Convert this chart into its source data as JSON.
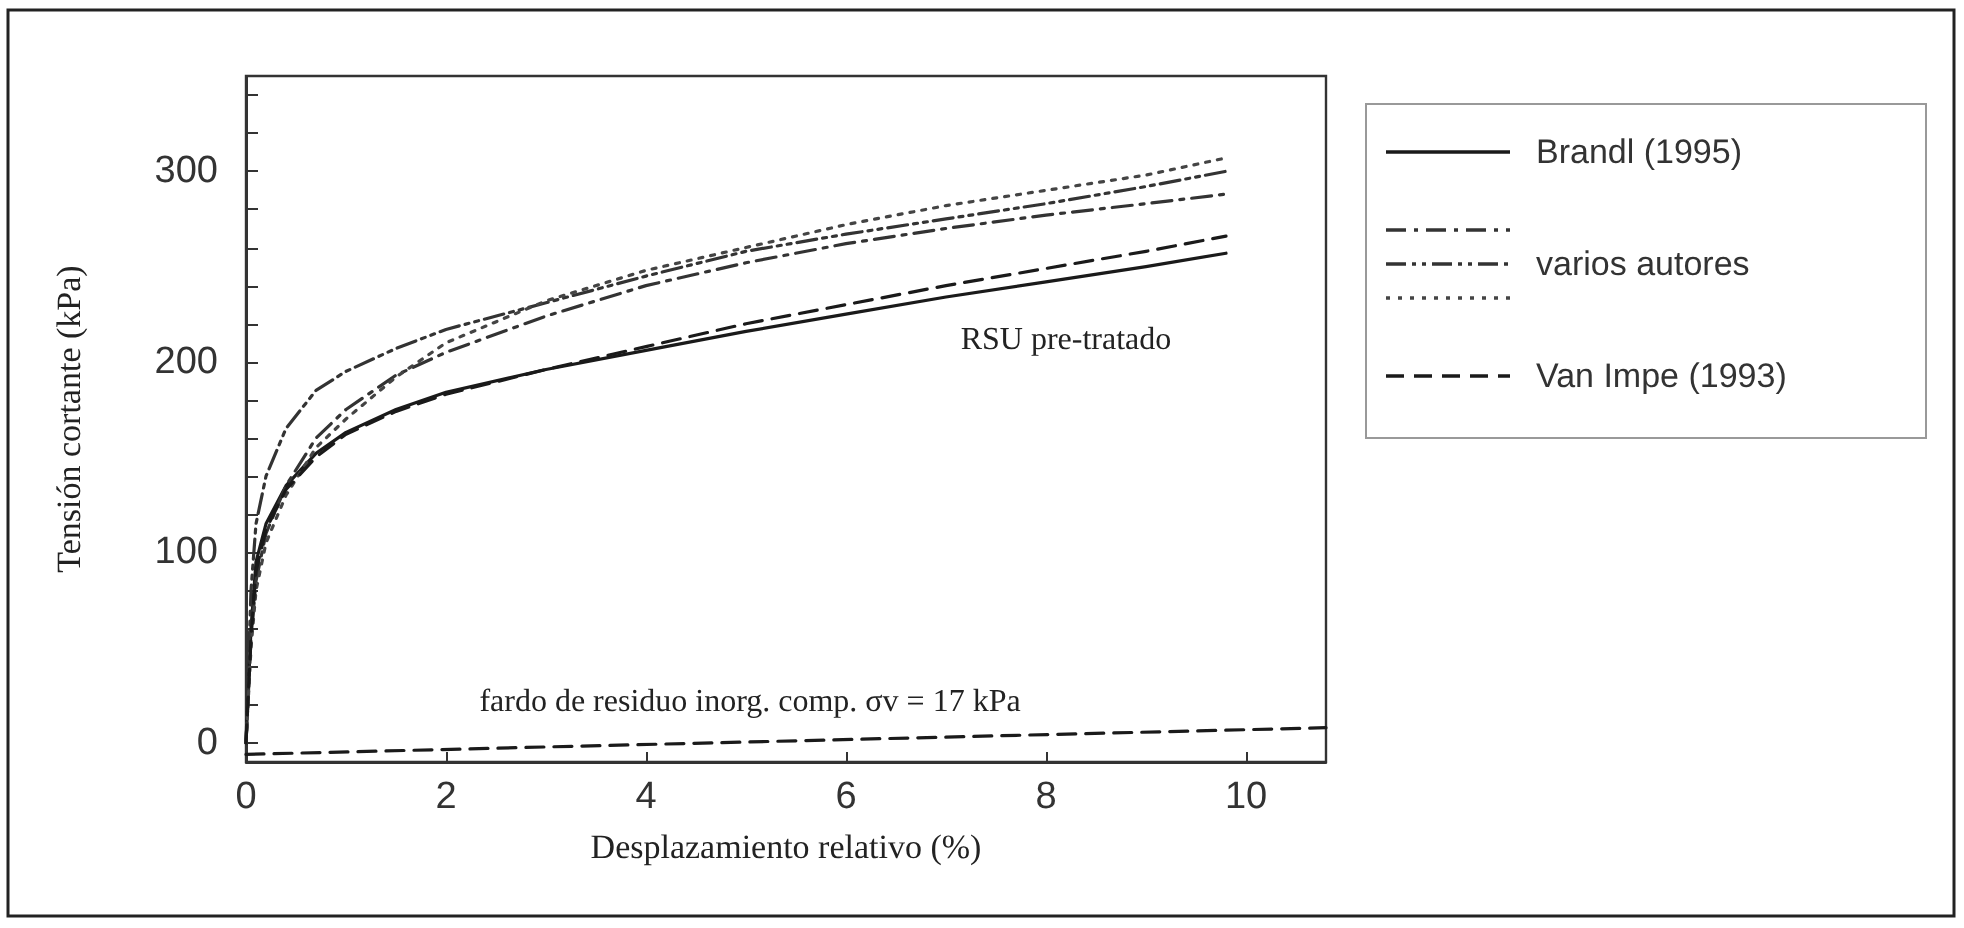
{
  "chart_data": {
    "type": "line",
    "xlabel": "Desplazamiento relativo (%)",
    "ylabel": "Tensión cortante (kPa)",
    "xlim": [
      0,
      10.8
    ],
    "xticks": [
      0,
      2,
      4,
      6,
      8,
      10
    ],
    "ylim": [
      -10,
      350
    ],
    "yticks": [
      0,
      {
        "value": 20,
        "label": null
      },
      {
        "value": 40,
        "label": null
      },
      {
        "value": 60,
        "label": null
      },
      {
        "value": 80,
        "label": null
      },
      100,
      {
        "value": 120,
        "label": null
      },
      {
        "value": 140,
        "label": null
      },
      {
        "value": 160,
        "label": null
      },
      {
        "value": 180,
        "label": null
      },
      200,
      {
        "value": 220,
        "label": null
      },
      {
        "value": 240,
        "label": null
      },
      {
        "value": 260,
        "label": null
      },
      {
        "value": 280,
        "label": null
      },
      300,
      {
        "value": 320,
        "label": null
      },
      {
        "value": 340,
        "label": null
      }
    ],
    "grid": false,
    "legend": "right",
    "marker": "none",
    "x": [
      0,
      0.05,
      0.1,
      0.2,
      0.4,
      0.7,
      1,
      1.5,
      2,
      3,
      4,
      5,
      6,
      7,
      8,
      9,
      9.8
    ],
    "series": [
      {
        "name": "Brandl (1995)",
        "color": "#1a1a1a",
        "line_style": "solid",
        "values": [
          0,
          60,
          95,
          115,
          135,
          152,
          163,
          175,
          184,
          196,
          206,
          216,
          225,
          234,
          242,
          250,
          257
        ]
      },
      {
        "name": "varios autores",
        "color": "#333333",
        "line_style": "dashdot",
        "values": [
          0,
          55,
          85,
          110,
          135,
          160,
          175,
          193,
          205,
          224,
          240,
          252,
          262,
          270,
          277,
          283,
          288
        ]
      },
      {
        "color": "#333333",
        "line_style": "dashdotdot",
        "values": [
          0,
          80,
          115,
          140,
          165,
          185,
          195,
          207,
          217,
          231,
          245,
          258,
          267,
          275,
          283,
          292,
          300
        ]
      },
      {
        "color": "#444444",
        "line_style": "dotted",
        "values": [
          0,
          50,
          80,
          105,
          130,
          155,
          170,
          192,
          210,
          232,
          248,
          260,
          272,
          282,
          290,
          298,
          307
        ]
      },
      {
        "name": "Van Impe (1993)",
        "color": "#1a1a1a",
        "line_style": "dashed",
        "values": [
          0,
          55,
          90,
          112,
          133,
          150,
          162,
          174,
          183,
          196,
          208,
          220,
          230,
          240,
          249,
          258,
          266
        ]
      },
      {
        "color": "#1a1a1a",
        "line_style": "dashed",
        "x": [
          0,
          10.8
        ],
        "values": [
          -6,
          8
        ]
      }
    ],
    "annotations": [
      "RSU pre-tratado",
      "fardo de residuo inorg. comp. σv = 17 kPa"
    ]
  }
}
